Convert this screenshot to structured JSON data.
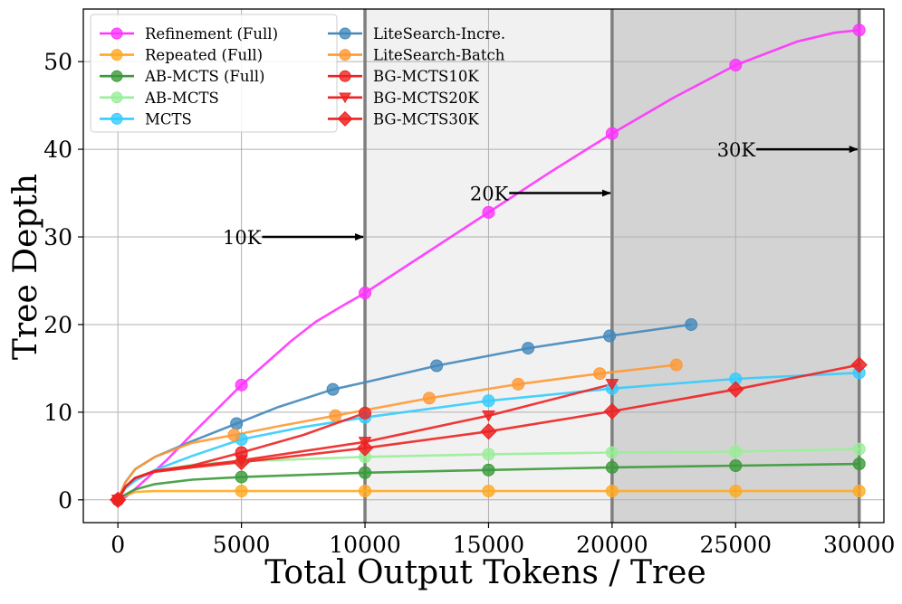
{
  "chart_data": {
    "type": "line",
    "title": "",
    "xlabel": "Total Output Tokens / Tree",
    "ylabel": "Tree Depth",
    "xlim": [
      -1400,
      31000
    ],
    "ylim": [
      -2.6,
      56
    ],
    "xticks": [
      0,
      5000,
      10000,
      15000,
      20000,
      25000,
      30000
    ],
    "yticks": [
      0,
      10,
      20,
      30,
      40,
      50
    ],
    "xtick_labels": [
      "0",
      "5000",
      "10000",
      "15000",
      "20000",
      "25000",
      "30000"
    ],
    "ytick_labels": [
      "0",
      "10",
      "20",
      "30",
      "40",
      "50"
    ],
    "grid": true,
    "legend_placement": "top-left",
    "budget_lines": [
      10000,
      20000,
      30000
    ],
    "shaded_regions": [
      {
        "from": 10000,
        "to": 20000,
        "color": "#f1f1f1"
      },
      {
        "from": 20000,
        "to": 30000,
        "color": "#d3d3d3"
      }
    ],
    "annotations": [
      {
        "text": "10K",
        "x_text": 5800,
        "y": 30,
        "x_arrow": 10000
      },
      {
        "text": "20K",
        "x_text": 15800,
        "y": 35,
        "x_arrow": 20000
      },
      {
        "text": "30K",
        "x_text": 25800,
        "y": 40,
        "x_arrow": 30000
      }
    ],
    "series": [
      {
        "name": "Refinement (Full)",
        "color": "#ff33ff",
        "marker": "circle",
        "x": [
          0,
          300,
          600,
          1000,
          2000,
          3000,
          4000,
          5000,
          6000,
          7000,
          8000,
          9000,
          10000,
          12500,
          15000,
          17500,
          20000,
          22500,
          25000,
          27500,
          29000,
          30000
        ],
        "y": [
          0,
          0.3,
          1,
          2,
          4.6,
          7.5,
          10.3,
          13.1,
          15.6,
          18.1,
          20.3,
          22,
          23.6,
          28.2,
          32.8,
          37.4,
          41.8,
          45.9,
          49.6,
          52.3,
          53.3,
          53.6
        ],
        "markers_x": [
          0,
          5000,
          10000,
          15000,
          20000,
          25000,
          30000
        ],
        "markers_y": [
          0,
          13.1,
          23.6,
          32.8,
          41.8,
          49.6,
          53.6
        ]
      },
      {
        "name": "Repeated (Full)",
        "color": "#ffaa22",
        "marker": "circle",
        "x": [
          0,
          300,
          700,
          1500,
          3000,
          5000,
          10000,
          15000,
          20000,
          25000,
          30000
        ],
        "y": [
          0,
          0.5,
          0.9,
          1,
          1,
          1,
          1,
          1,
          1,
          1,
          1
        ],
        "markers_x": [
          0,
          5000,
          10000,
          15000,
          20000,
          25000,
          30000
        ],
        "markers_y": [
          0,
          1,
          1,
          1,
          1,
          1,
          1
        ]
      },
      {
        "name": "AB-MCTS (Full)",
        "color": "#3a9a3a",
        "marker": "circle",
        "x": [
          0,
          300,
          700,
          1500,
          3000,
          5000,
          10000,
          15000,
          20000,
          25000,
          30000
        ],
        "y": [
          0,
          0.6,
          1.2,
          1.8,
          2.3,
          2.6,
          3.1,
          3.4,
          3.7,
          3.9,
          4.1
        ],
        "markers_x": [
          0,
          5000,
          10000,
          15000,
          20000,
          25000,
          30000
        ],
        "markers_y": [
          0,
          2.6,
          3.1,
          3.4,
          3.7,
          3.9,
          4.1
        ]
      },
      {
        "name": "AB-MCTS",
        "color": "#99ee99",
        "marker": "circle",
        "x": [
          0,
          300,
          700,
          1500,
          3000,
          5000,
          10000,
          15000,
          20000,
          25000,
          30000
        ],
        "y": [
          0,
          1.5,
          2.5,
          3.3,
          4,
          4.4,
          4.9,
          5.2,
          5.4,
          5.5,
          5.8
        ],
        "markers_x": [
          0,
          5000,
          10000,
          15000,
          20000,
          25000,
          30000
        ],
        "markers_y": [
          0,
          4.4,
          4.9,
          5.2,
          5.4,
          5.5,
          5.8
        ]
      },
      {
        "name": "MCTS",
        "color": "#33ccff",
        "marker": "circle",
        "x": [
          0,
          300,
          700,
          1500,
          3000,
          5000,
          7500,
          10000,
          15000,
          20000,
          25000,
          30000
        ],
        "y": [
          0,
          1.3,
          2.2,
          3.4,
          5,
          6.9,
          8.3,
          9.4,
          11.3,
          12.7,
          13.8,
          14.5
        ],
        "markers_x": [
          0,
          5000,
          10000,
          15000,
          20000,
          25000,
          30000
        ],
        "markers_y": [
          0,
          6.9,
          9.4,
          11.3,
          12.7,
          13.8,
          14.5
        ]
      },
      {
        "name": "LiteSearch-Incre.",
        "color": "#4488bb",
        "marker": "circle",
        "x": [
          0,
          300,
          700,
          1500,
          3000,
          4800,
          6500,
          8700,
          10000,
          12900,
          16600,
          19900,
          23200
        ],
        "y": [
          0,
          2,
          3.5,
          4.9,
          6.7,
          8.7,
          10.6,
          12.6,
          13.4,
          15.3,
          17.3,
          18.7,
          20
        ],
        "markers_x": [
          0,
          4800,
          8700,
          12900,
          16600,
          19900,
          23200
        ],
        "markers_y": [
          0,
          8.7,
          12.6,
          15.3,
          17.3,
          18.7,
          20
        ]
      },
      {
        "name": "LiteSearch-Batch",
        "color": "#ff9933",
        "marker": "circle",
        "x": [
          0,
          300,
          700,
          1500,
          3000,
          4700,
          6500,
          8800,
          12600,
          16200,
          19500,
          22600
        ],
        "y": [
          0,
          2,
          3.5,
          4.9,
          6.5,
          7.4,
          8.4,
          9.6,
          11.6,
          13.2,
          14.4,
          15.4
        ],
        "markers_x": [
          0,
          4700,
          8800,
          12600,
          16200,
          19500,
          22600
        ],
        "markers_y": [
          0,
          7.4,
          9.6,
          11.6,
          13.2,
          14.4,
          15.4
        ]
      },
      {
        "name": "BG-MCTS10K",
        "color": "#ee2222",
        "marker": "circle",
        "x": [
          0,
          300,
          700,
          1500,
          3000,
          5000,
          7500,
          10000
        ],
        "y": [
          0,
          1.5,
          2.5,
          3.3,
          3.9,
          5.4,
          7.4,
          9.9
        ],
        "markers_x": [
          0,
          5000,
          10000
        ],
        "markers_y": [
          0,
          5.4,
          9.9
        ]
      },
      {
        "name": "BG-MCTS20K",
        "color": "#ee2222",
        "marker": "triangle-down",
        "x": [
          0,
          300,
          700,
          1500,
          3000,
          5000,
          10000,
          15000,
          20000
        ],
        "y": [
          0,
          1.5,
          2.5,
          3.3,
          3.8,
          4.5,
          6.6,
          9.6,
          13.2
        ],
        "markers_x": [
          0,
          5000,
          10000,
          15000,
          20000
        ],
        "markers_y": [
          0,
          4.5,
          6.6,
          9.6,
          13.2
        ]
      },
      {
        "name": "BG-MCTS30K",
        "color": "#ee2222",
        "marker": "diamond",
        "x": [
          0,
          300,
          700,
          1500,
          3000,
          5000,
          10000,
          15000,
          20000,
          25000,
          30000
        ],
        "y": [
          0,
          1.5,
          2.5,
          3.2,
          3.7,
          4.3,
          5.9,
          7.8,
          10.1,
          12.6,
          15.4
        ],
        "markers_x": [
          0,
          5000,
          10000,
          15000,
          20000,
          25000,
          30000
        ],
        "markers_y": [
          0,
          4.3,
          5.9,
          7.8,
          10.1,
          12.6,
          15.4
        ]
      }
    ]
  }
}
